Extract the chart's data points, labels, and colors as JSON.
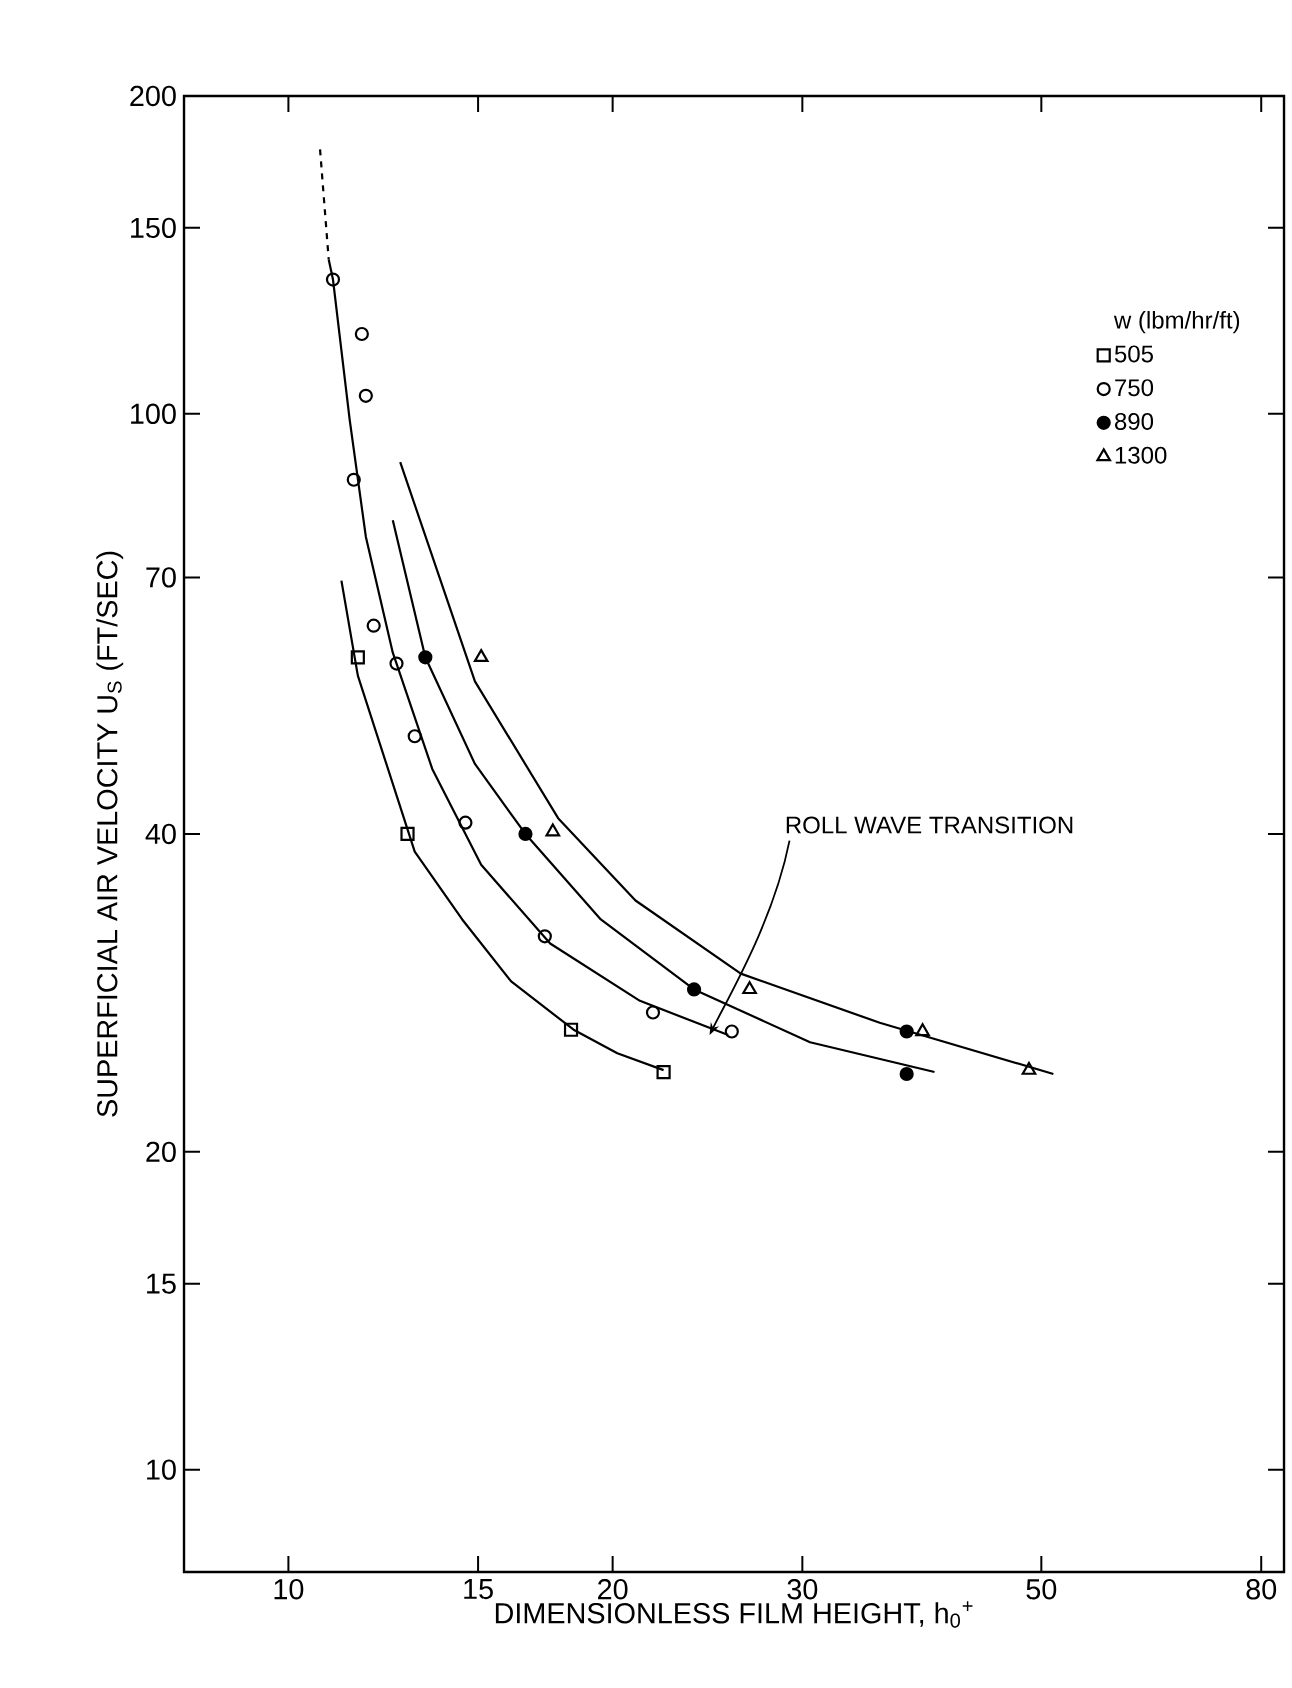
{
  "chart_data": {
    "type": "scatter",
    "xlabel": "DIMENSIONLESS FILM HEIGHT, h$_{0}$$^{+}$",
    "ylabel": "SUPERFICIAL AIR VELOCITY  U$_{S}$ (FT/SEC)",
    "legend_title": "w (lbm/hr/ft)",
    "log": "xy",
    "xlim": [
      8,
      84
    ],
    "ylim": [
      8,
      200
    ],
    "xticks": [
      10,
      15,
      20,
      30,
      50,
      80
    ],
    "yticks": [
      10,
      15,
      20,
      40,
      70,
      100,
      150,
      200
    ],
    "grid": false,
    "legend": "top right",
    "annotations": [
      {
        "text": "ROLL WAVE TRANSITION",
        "x": 24.6,
        "y": 25.8
      }
    ],
    "series": [
      {
        "name": "505",
        "marker": "square",
        "color": "#000000",
        "x": [
          11.6,
          12.9,
          18.3,
          22.3
        ],
        "values": [
          58.8,
          40,
          26.1,
          23.8
        ]
      },
      {
        "name": "750",
        "marker": "circle",
        "color": "#000000",
        "x": [
          11.0,
          11.7,
          11.8,
          11.5,
          12.0,
          12.6,
          13.1,
          14.6,
          17.3,
          21.8,
          25.8
        ],
        "values": [
          134,
          119,
          104,
          86.6,
          63,
          58,
          49.5,
          41,
          32,
          27.1,
          26.0
        ]
      },
      {
        "name": "890",
        "marker": "filled circle",
        "color": "#000000",
        "x": [
          13.4,
          16.6,
          23.8,
          37.5,
          37.5
        ],
        "values": [
          58.8,
          40,
          28.5,
          26,
          23.7
        ]
      },
      {
        "name": "1300",
        "marker": "triangle",
        "color": "#000000",
        "x": [
          15.1,
          17.6,
          26.8,
          38.8,
          48.7
        ],
        "values": [
          58.8,
          40.2,
          28.5,
          26,
          23.9
        ]
      },
      {
        "type": "line",
        "marker": "none",
        "color": "#000000",
        "line_style": "solid",
        "x": [
          11.2,
          11.6,
          13.1,
          14.5,
          16.1,
          18.4,
          20.2,
          22.3
        ],
        "values": [
          69.5,
          56.5,
          38.5,
          33.2,
          29.0,
          26.1,
          24.8,
          23.9
        ]
      },
      {
        "type": "line",
        "marker": "none",
        "color": "#000000",
        "line_style": "dashed",
        "x": [
          10.7,
          10.9
        ],
        "values": [
          178,
          140
        ]
      },
      {
        "type": "line",
        "marker": "none",
        "color": "#000000",
        "line_style": "solid",
        "x": [
          10.9,
          11.0,
          11.4,
          11.8,
          12.5,
          13.6,
          15.1,
          17.5,
          21.2,
          25.6
        ],
        "values": [
          140,
          134,
          98.7,
          76.5,
          59.4,
          46.1,
          37.4,
          31.5,
          27.8,
          25.8
        ]
      },
      {
        "type": "line",
        "marker": "none",
        "color": "#000000",
        "line_style": "solid",
        "x": [
          12.5,
          13.4,
          14.9,
          16.6,
          19.5,
          23.8,
          30.5,
          39.8
        ],
        "values": [
          79.3,
          58.8,
          46.6,
          40,
          33.2,
          28.5,
          25.4,
          23.8
        ]
      },
      {
        "type": "line",
        "marker": "none",
        "color": "#000000",
        "line_style": "solid",
        "x": [
          12.7,
          14.9,
          17.8,
          21.0,
          26.3,
          35.4,
          51.3
        ],
        "values": [
          90,
          55.8,
          41.4,
          34.6,
          29.5,
          26.5,
          23.7
        ]
      }
    ]
  }
}
